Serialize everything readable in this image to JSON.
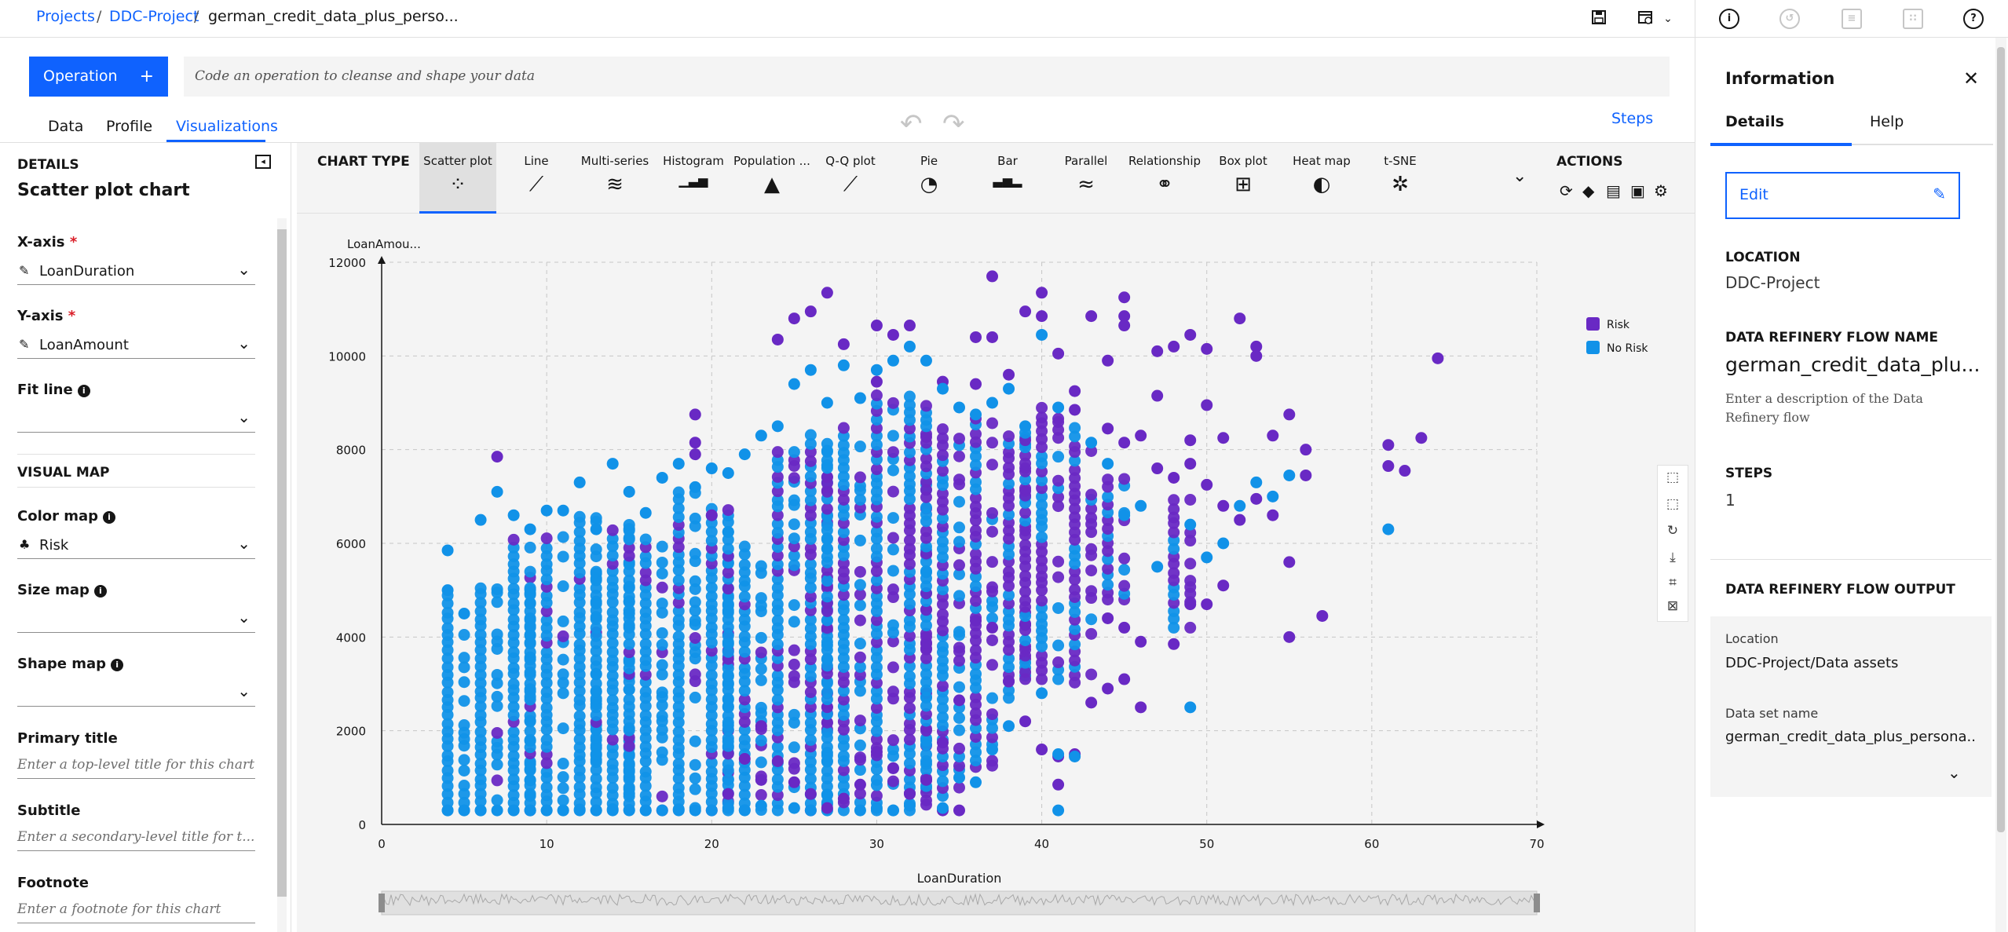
{
  "breadcrumb": {
    "projects": "Projects",
    "project": "DDC-Project",
    "file": "german_credit_data_plus_perso...",
    "sep": "/"
  },
  "operation": {
    "button_label": "Operation",
    "plus": "+",
    "input_placeholder": "Code an operation to cleanse and shape your data"
  },
  "tabs": [
    {
      "label": "Data"
    },
    {
      "label": "Profile"
    },
    {
      "label": "Visualizations"
    }
  ],
  "steps_link": "Steps",
  "details": {
    "heading": "DETAILS",
    "title": "Scatter plot chart",
    "x_axis": {
      "label": "X-axis",
      "required": "*",
      "value": "LoanDuration"
    },
    "y_axis": {
      "label": "Y-axis",
      "required": "*",
      "value": "LoanAmount"
    },
    "fit_line": {
      "label": "Fit line",
      "value": ""
    },
    "visual_map_heading": "VISUAL MAP",
    "color_map": {
      "label": "Color map",
      "value": "Risk"
    },
    "size_map": {
      "label": "Size map",
      "value": ""
    },
    "shape_map": {
      "label": "Shape map",
      "value": ""
    },
    "primary_title": {
      "label": "Primary title",
      "placeholder": "Enter a top-level title for this chart"
    },
    "subtitle": {
      "label": "Subtitle",
      "placeholder": "Enter a secondary-level title for t..."
    },
    "footnote": {
      "label": "Footnote",
      "placeholder": "Enter a footnote for this chart"
    }
  },
  "chart_type": {
    "heading": "CHART TYPE",
    "items": [
      {
        "label": "Scatter plot",
        "icon": "scatter-icon"
      },
      {
        "label": "Line",
        "icon": "line-icon"
      },
      {
        "label": "Multi-series",
        "icon": "multi-series-icon"
      },
      {
        "label": "Histogram",
        "icon": "histogram-icon"
      },
      {
        "label": "Population ...",
        "icon": "population-icon"
      },
      {
        "label": "Q-Q plot",
        "icon": "qq-icon"
      },
      {
        "label": "Pie",
        "icon": "pie-icon"
      },
      {
        "label": "Bar",
        "icon": "bar-icon"
      },
      {
        "label": "Parallel",
        "icon": "parallel-icon"
      },
      {
        "label": "Relationship",
        "icon": "relationship-icon"
      },
      {
        "label": "Box plot",
        "icon": "box-plot-icon"
      },
      {
        "label": "Heat map",
        "icon": "heat-map-icon"
      },
      {
        "label": "t-SNE",
        "icon": "tsne-icon"
      }
    ]
  },
  "actions": {
    "heading": "ACTIONS"
  },
  "chart_data": {
    "type": "scatter",
    "xlabel": "LoanDuration",
    "ylabel": "LoanAmou...",
    "xlim": [
      0,
      70
    ],
    "ylim": [
      0,
      12000
    ],
    "x_ticks": [
      "0",
      "10",
      "20",
      "30",
      "40",
      "50",
      "60",
      "70"
    ],
    "y_ticks": [
      "0",
      "2000",
      "4000",
      "6000",
      "8000",
      "10000",
      "12000"
    ],
    "grid": true,
    "legend_position": "right",
    "series": [
      {
        "name": "Risk",
        "color": "#6929c4",
        "points": [
          [
            7,
            7850
          ],
          [
            19,
            8750
          ],
          [
            19,
            8150
          ],
          [
            19,
            7900
          ],
          [
            20,
            6600
          ],
          [
            24,
            10350
          ],
          [
            25,
            10800
          ],
          [
            26,
            10950
          ],
          [
            27,
            11350
          ],
          [
            28,
            10250
          ],
          [
            30,
            10650
          ],
          [
            30,
            9450
          ],
          [
            31,
            10450
          ],
          [
            32,
            10650
          ],
          [
            34,
            9450
          ],
          [
            36,
            10400
          ],
          [
            36,
            9400
          ],
          [
            37,
            11700
          ],
          [
            37,
            10400
          ],
          [
            38,
            9600
          ],
          [
            39,
            10950
          ],
          [
            40,
            11350
          ],
          [
            40,
            10850
          ],
          [
            41,
            10050
          ],
          [
            42,
            9250
          ],
          [
            42,
            8850
          ],
          [
            43,
            10850
          ],
          [
            44,
            9900
          ],
          [
            45,
            11250
          ],
          [
            45,
            10850
          ],
          [
            45,
            10650
          ],
          [
            47,
            10100
          ],
          [
            47,
            9150
          ],
          [
            48,
            10200
          ],
          [
            49,
            10450
          ],
          [
            50,
            10150
          ],
          [
            50,
            8950
          ],
          [
            52,
            10800
          ],
          [
            53,
            10200
          ],
          [
            53,
            10000
          ],
          [
            51,
            8250
          ],
          [
            49,
            8200
          ],
          [
            54,
            8300
          ],
          [
            55,
            8750
          ],
          [
            56,
            8000
          ],
          [
            56,
            7450
          ],
          [
            61,
            8100
          ],
          [
            61,
            7650
          ],
          [
            62,
            7550
          ],
          [
            63,
            8250
          ],
          [
            64,
            9950
          ],
          [
            44,
            8450
          ],
          [
            45,
            8150
          ],
          [
            46,
            8300
          ],
          [
            47,
            7600
          ],
          [
            48,
            7400
          ],
          [
            49,
            7700
          ],
          [
            50,
            7250
          ],
          [
            51,
            6800
          ],
          [
            52,
            6500
          ],
          [
            53,
            6950
          ],
          [
            54,
            6600
          ],
          [
            55,
            5600
          ],
          [
            55,
            4000
          ],
          [
            57,
            4450
          ],
          [
            50,
            4700
          ],
          [
            51,
            5100
          ],
          [
            49,
            4700
          ],
          [
            48,
            3850
          ],
          [
            46,
            3900
          ],
          [
            45,
            4200
          ],
          [
            44,
            4400
          ],
          [
            45,
            3100
          ],
          [
            46,
            2500
          ],
          [
            43,
            2600
          ],
          [
            44,
            2900
          ],
          [
            41,
            1450
          ],
          [
            41,
            850
          ],
          [
            42,
            1500
          ],
          [
            40,
            1600
          ],
          [
            39,
            2200
          ],
          [
            38,
            3050
          ],
          [
            37,
            4200
          ],
          [
            36,
            4350
          ],
          [
            35,
            2650
          ],
          [
            34,
            1750
          ],
          [
            33,
            950
          ],
          [
            32,
            650
          ],
          [
            31,
            1200
          ],
          [
            30,
            1550
          ],
          [
            29,
            850
          ],
          [
            28,
            550
          ],
          [
            27,
            350
          ],
          [
            26,
            650
          ],
          [
            25,
            900
          ],
          [
            24,
            1350
          ],
          [
            23,
            950
          ],
          [
            23,
            2100
          ],
          [
            22,
            1400
          ],
          [
            21,
            650
          ],
          [
            35,
            300
          ],
          [
            34,
            300
          ]
        ]
      },
      {
        "name": "No Risk",
        "color": "#1192e8",
        "points": [
          [
            4,
            5850
          ],
          [
            4,
            5000
          ],
          [
            5,
            4500
          ],
          [
            6,
            6500
          ],
          [
            7,
            7100
          ],
          [
            8,
            6600
          ],
          [
            9,
            6300
          ],
          [
            10,
            6700
          ],
          [
            11,
            6700
          ],
          [
            12,
            7300
          ],
          [
            13,
            6300
          ],
          [
            14,
            7700
          ],
          [
            15,
            7100
          ],
          [
            16,
            6650
          ],
          [
            17,
            7400
          ],
          [
            18,
            7700
          ],
          [
            19,
            7200
          ],
          [
            20,
            7600
          ],
          [
            21,
            7500
          ],
          [
            22,
            7900
          ],
          [
            23,
            8300
          ],
          [
            24,
            8500
          ],
          [
            25,
            9400
          ],
          [
            26,
            9700
          ],
          [
            27,
            9000
          ],
          [
            28,
            9800
          ],
          [
            29,
            9100
          ],
          [
            30,
            9700
          ],
          [
            31,
            9900
          ],
          [
            32,
            10200
          ],
          [
            33,
            9900
          ],
          [
            34,
            9300
          ],
          [
            35,
            8900
          ],
          [
            36,
            8750
          ],
          [
            37,
            9000
          ],
          [
            38,
            9300
          ],
          [
            39,
            8500
          ],
          [
            40,
            10450
          ],
          [
            41,
            8900
          ],
          [
            43,
            8150
          ],
          [
            44,
            7700
          ],
          [
            45,
            6600
          ],
          [
            46,
            6800
          ],
          [
            47,
            5500
          ],
          [
            49,
            6400
          ],
          [
            50,
            5700
          ],
          [
            51,
            6000
          ],
          [
            49,
            2500
          ],
          [
            52,
            6800
          ],
          [
            53,
            7300
          ],
          [
            54,
            7000
          ],
          [
            55,
            7450
          ],
          [
            61,
            6300
          ],
          [
            41,
            1500
          ],
          [
            41,
            300
          ],
          [
            42,
            1450
          ],
          [
            40,
            2800
          ],
          [
            38,
            2100
          ],
          [
            37,
            1600
          ],
          [
            36,
            900
          ],
          [
            35,
            1000
          ],
          [
            34,
            350
          ],
          [
            32,
            400
          ],
          [
            31,
            300
          ],
          [
            30,
            350
          ],
          [
            29,
            300
          ],
          [
            26,
            300
          ],
          [
            25,
            350
          ],
          [
            23,
            400
          ],
          [
            22,
            300
          ],
          [
            21,
            350
          ],
          [
            20,
            300
          ],
          [
            19,
            300
          ],
          [
            18,
            300
          ],
          [
            17,
            300
          ],
          [
            16,
            300
          ],
          [
            15,
            300
          ],
          [
            14,
            300
          ],
          [
            13,
            300
          ],
          [
            12,
            300
          ],
          [
            11,
            300
          ],
          [
            10,
            300
          ],
          [
            9,
            300
          ],
          [
            8,
            300
          ],
          [
            7,
            300
          ],
          [
            6,
            300
          ],
          [
            5,
            300
          ],
          [
            4,
            300
          ]
        ]
      }
    ],
    "dense_columns": [
      {
        "x": 4,
        "ymin": 300,
        "ymax": 5000,
        "mix": 0.02
      },
      {
        "x": 6,
        "ymin": 300,
        "ymax": 5200,
        "mix": 0.04
      },
      {
        "x": 8,
        "ymin": 300,
        "ymax": 6200,
        "mix": 0.06
      },
      {
        "x": 9,
        "ymin": 300,
        "ymax": 5200,
        "mix": 0.05
      },
      {
        "x": 10,
        "ymin": 300,
        "ymax": 6100,
        "mix": 0.06
      },
      {
        "x": 12,
        "ymin": 300,
        "ymax": 6600,
        "mix": 0.08
      },
      {
        "x": 13,
        "ymin": 300,
        "ymax": 5500,
        "mix": 0.08
      },
      {
        "x": 14,
        "ymin": 300,
        "ymax": 6400,
        "mix": 0.1
      },
      {
        "x": 15,
        "ymin": 300,
        "ymax": 6500,
        "mix": 0.1
      },
      {
        "x": 16,
        "ymin": 300,
        "ymax": 6200,
        "mix": 0.12
      },
      {
        "x": 18,
        "ymin": 300,
        "ymax": 7100,
        "mix": 0.14
      },
      {
        "x": 20,
        "ymin": 300,
        "ymax": 6900,
        "mix": 0.18
      },
      {
        "x": 21,
        "ymin": 300,
        "ymax": 6300,
        "mix": 0.2
      },
      {
        "x": 22,
        "ymin": 300,
        "ymax": 6000,
        "mix": 0.22
      },
      {
        "x": 24,
        "ymin": 300,
        "ymax": 8000,
        "mix": 0.3
      },
      {
        "x": 26,
        "ymin": 300,
        "ymax": 8300,
        "mix": 0.34
      },
      {
        "x": 27,
        "ymin": 300,
        "ymax": 8200,
        "mix": 0.38
      },
      {
        "x": 28,
        "ymin": 300,
        "ymax": 8500,
        "mix": 0.4
      },
      {
        "x": 30,
        "ymin": 300,
        "ymax": 9300,
        "mix": 0.45
      },
      {
        "x": 32,
        "ymin": 300,
        "ymax": 9200,
        "mix": 0.5
      },
      {
        "x": 33,
        "ymin": 500,
        "ymax": 8600,
        "mix": 0.55
      },
      {
        "x": 34,
        "ymin": 600,
        "ymax": 8500,
        "mix": 0.6
      },
      {
        "x": 36,
        "ymin": 1200,
        "ymax": 8800,
        "mix": 0.62
      },
      {
        "x": 38,
        "ymin": 2700,
        "ymax": 8400,
        "mix": 0.65
      },
      {
        "x": 39,
        "ymin": 3100,
        "ymax": 8400,
        "mix": 0.66
      },
      {
        "x": 40,
        "ymin": 3100,
        "ymax": 9000,
        "mix": 0.7
      },
      {
        "x": 42,
        "ymin": 3000,
        "ymax": 8600,
        "mix": 0.72
      },
      {
        "x": 44,
        "ymin": 4800,
        "ymax": 7400,
        "mix": 0.74
      },
      {
        "x": 48,
        "ymin": 4200,
        "ymax": 7000,
        "mix": 0.78
      }
    ]
  },
  "info_panel": {
    "title": "Information",
    "tabs": [
      {
        "label": "Details"
      },
      {
        "label": "Help"
      }
    ],
    "edit_label": "Edit",
    "location_label": "LOCATION",
    "location_value": "DDC-Project",
    "flow_name_label": "DATA REFINERY FLOW NAME",
    "flow_name_value": "german_credit_data_plu...",
    "flow_desc_placeholder": "Enter a description of the Data Refinery flow",
    "steps_label": "STEPS",
    "steps_value": "1",
    "output_label": "DATA REFINERY FLOW OUTPUT",
    "output_location_label": "Location",
    "output_location_value": "DDC-Project/Data assets",
    "output_dataset_label": "Data set name",
    "output_dataset_value": "german_credit_data_plus_persona..."
  }
}
